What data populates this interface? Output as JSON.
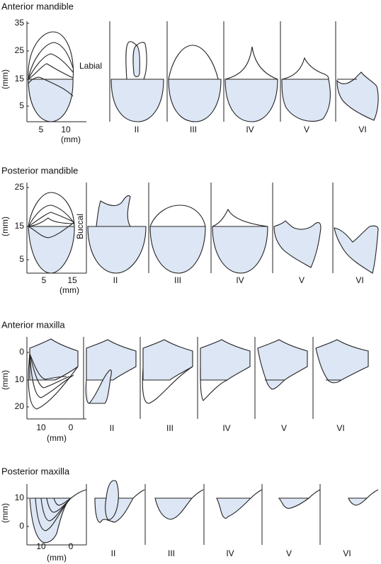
{
  "panels": [
    {
      "title": "Anterior mandible",
      "y_label": "(mm)",
      "y_ticks": [
        35,
        25,
        15,
        5
      ],
      "x_ticks": [
        5,
        10
      ],
      "x_label": "(mm)",
      "side_label": "Labial",
      "classes": [
        "II",
        "III",
        "IV",
        "V",
        "VI"
      ]
    },
    {
      "title": "Posterior mandible",
      "y_label": "(mm)",
      "y_ticks": [
        25,
        15,
        5
      ],
      "x_ticks": [
        5,
        15
      ],
      "x_label": "(mm)",
      "side_label": "Buccal",
      "classes": [
        "II",
        "III",
        "IV",
        "V",
        "VI"
      ]
    },
    {
      "title": "Anterior maxilla",
      "y_label": "(mm)",
      "y_ticks": [
        0,
        10,
        20
      ],
      "x_ticks": [
        10,
        0
      ],
      "x_label": "(mm)",
      "classes": [
        "II",
        "III",
        "IV",
        "V",
        "VI"
      ]
    },
    {
      "title": "Posterior maxilla",
      "y_label": "(mm)",
      "y_ticks": [
        10,
        0
      ],
      "x_ticks": [
        10,
        0
      ],
      "x_label": "(mm)",
      "classes": [
        "II",
        "III",
        "IV",
        "V",
        "VI"
      ]
    }
  ]
}
